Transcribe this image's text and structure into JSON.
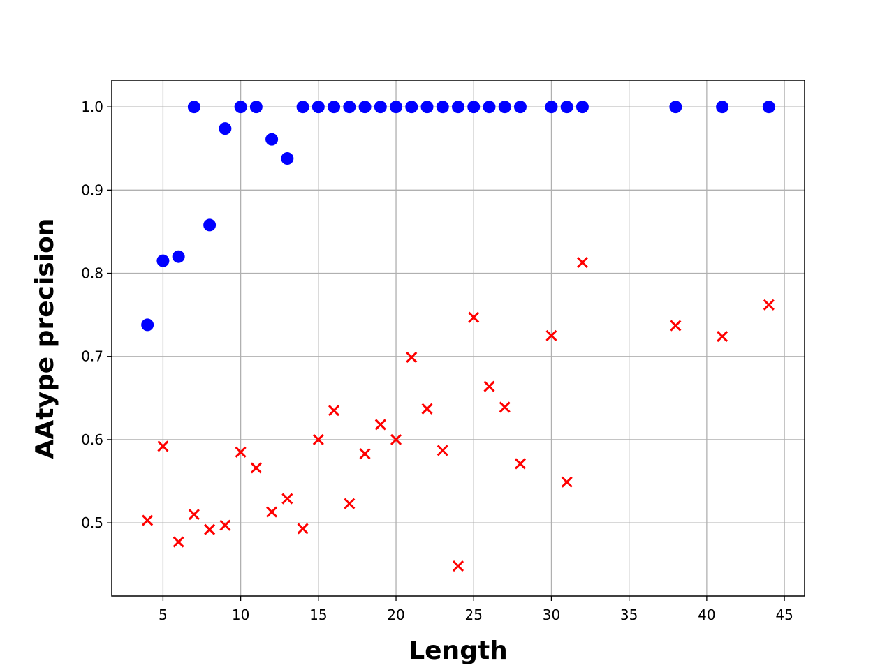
{
  "chart_data": {
    "type": "scatter",
    "xlabel": "Length",
    "ylabel": "AAtype precision",
    "xlim": [
      1.7,
      46.3
    ],
    "ylim": [
      0.412,
      1.032
    ],
    "xticks": [
      5,
      10,
      15,
      20,
      25,
      30,
      35,
      40,
      45
    ],
    "yticks": [
      0.5,
      0.6,
      0.7,
      0.8,
      0.9,
      {
        "value": 1,
        "label": "1.0"
      }
    ],
    "grid": true,
    "series": [
      {
        "color": "#0000ff",
        "marker": "circle",
        "x": [
          4,
          5,
          6,
          7,
          8,
          9,
          10,
          11,
          12,
          13,
          14,
          15,
          16,
          17,
          18,
          19,
          20,
          21,
          22,
          23,
          24,
          25,
          26,
          27,
          28,
          30,
          31,
          32,
          38,
          41,
          44
        ],
        "values": [
          0.738,
          0.815,
          0.82,
          1.0,
          0.858,
          0.974,
          1.0,
          1.0,
          0.961,
          0.938,
          1.0,
          1.0,
          1.0,
          1.0,
          1.0,
          1.0,
          1.0,
          1.0,
          1.0,
          1.0,
          1.0,
          1.0,
          1.0,
          1.0,
          1.0,
          1.0,
          1.0,
          1.0,
          1.0,
          1.0,
          1.0
        ]
      },
      {
        "color": "#ff0000",
        "marker": "x",
        "x": [
          4,
          5,
          6,
          7,
          8,
          9,
          10,
          11,
          12,
          13,
          14,
          15,
          16,
          17,
          18,
          19,
          20,
          21,
          22,
          23,
          24,
          25,
          26,
          27,
          28,
          30,
          31,
          32,
          38,
          41,
          44
        ],
        "values": [
          0.503,
          0.592,
          0.477,
          0.51,
          0.492,
          0.497,
          0.585,
          0.566,
          0.513,
          0.529,
          0.493,
          0.6,
          0.635,
          0.523,
          0.583,
          0.618,
          0.6,
          0.699,
          0.637,
          0.587,
          0.448,
          0.747,
          0.664,
          0.639,
          0.571,
          0.725,
          0.549,
          0.813,
          0.737,
          0.724,
          0.762
        ]
      }
    ]
  }
}
